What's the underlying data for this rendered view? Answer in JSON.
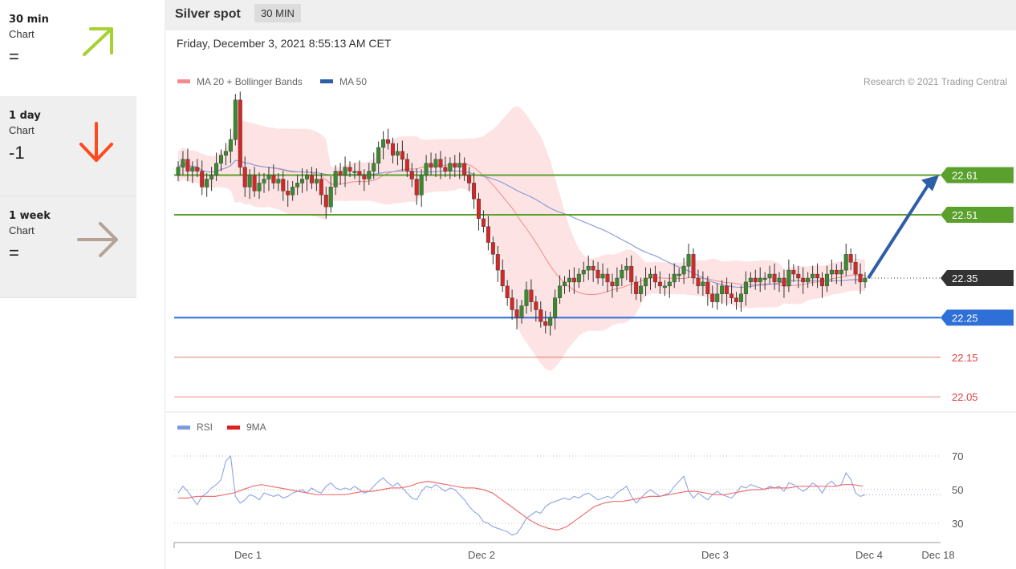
{
  "sidebar": [
    {
      "period": "30 min",
      "sub": "Chart",
      "signal": "=",
      "arrow": "up-right-arrow-icon",
      "color": "#9acd32"
    },
    {
      "period": "1 day",
      "sub": "Chart",
      "signal": "-1",
      "arrow": "down-arrow-icon",
      "color": "#ff4500"
    },
    {
      "period": "1 week",
      "sub": "Chart",
      "signal": "=",
      "arrow": "right-arrow-icon",
      "color": "#b5a397"
    }
  ],
  "header": {
    "title": "Silver spot",
    "timeframe": "30 MIN"
  },
  "datetime": "Friday, December 3, 2021 8:55:13 AM CET",
  "chart_data": {
    "type": "candlestick",
    "legend": [
      "MA 20 + Bollinger Bands",
      "MA 50"
    ],
    "copyright": "Research © 2021 Trading Central",
    "ylim": [
      22.02,
      22.85
    ],
    "x_ticks": [
      "Dec 1",
      "Dec 2",
      "Dec 3",
      "Dec 4",
      "Dec 18"
    ],
    "last_price": "22.35",
    "levels": [
      {
        "value": "22.61",
        "kind": "target",
        "color": "#5aa02c"
      },
      {
        "value": "22.51",
        "kind": "target",
        "color": "#5aa02c"
      },
      {
        "value": "22.25",
        "kind": "pivot",
        "color": "#2f6fd8"
      },
      {
        "value": "22.15",
        "kind": "support",
        "color": "#e04040"
      },
      {
        "value": "22.05",
        "kind": "support",
        "color": "#e04040"
      }
    ],
    "closes": [
      22.63,
      22.65,
      22.62,
      22.63,
      22.62,
      22.58,
      22.6,
      22.61,
      22.64,
      22.66,
      22.67,
      22.7,
      22.8,
      22.63,
      22.58,
      22.61,
      22.57,
      22.59,
      22.6,
      22.61,
      22.59,
      22.6,
      22.57,
      22.56,
      22.58,
      22.59,
      22.6,
      22.61,
      22.59,
      22.6,
      22.56,
      22.53,
      22.58,
      22.62,
      22.61,
      22.63,
      22.62,
      22.62,
      22.61,
      22.6,
      22.62,
      22.64,
      22.68,
      22.7,
      22.69,
      22.66,
      22.67,
      22.65,
      22.62,
      22.6,
      22.56,
      22.61,
      22.64,
      22.63,
      22.65,
      22.63,
      22.62,
      22.64,
      22.63,
      22.64,
      22.61,
      22.59,
      22.55,
      22.5,
      22.48,
      22.44,
      22.41,
      22.37,
      22.33,
      22.3,
      22.27,
      22.25,
      22.28,
      22.32,
      22.29,
      22.27,
      22.24,
      22.23,
      22.25,
      22.3,
      22.33,
      22.34,
      22.35,
      22.34,
      22.36,
      22.37,
      22.38,
      22.37,
      22.35,
      22.36,
      22.34,
      22.33,
      22.35,
      22.37,
      22.38,
      22.34,
      22.31,
      22.33,
      22.35,
      22.36,
      22.34,
      22.33,
      22.33,
      22.34,
      22.36,
      22.36,
      22.38,
      22.41,
      22.35,
      22.33,
      22.34,
      22.31,
      22.29,
      22.31,
      22.33,
      22.31,
      22.3,
      22.29,
      22.31,
      22.34,
      22.35,
      22.34,
      22.35,
      22.35,
      22.36,
      22.34,
      22.35,
      22.33,
      22.37,
      22.36,
      22.35,
      22.34,
      22.35,
      22.36,
      22.35,
      22.33,
      22.36,
      22.37,
      22.36,
      22.37,
      22.41,
      22.39,
      22.36,
      22.34,
      22.35
    ],
    "rsi": {
      "legend": [
        "RSI",
        "9MA"
      ],
      "levels": [
        "70",
        "50",
        "30"
      ],
      "values": [
        48,
        52,
        49,
        45,
        41,
        46,
        48,
        51,
        53,
        56,
        67,
        70,
        46,
        42,
        44,
        47,
        46,
        44,
        48,
        47,
        46,
        47,
        45,
        46,
        48,
        49,
        50,
        48,
        51,
        49,
        48,
        52,
        54,
        51,
        50,
        51,
        50,
        52,
        50,
        48,
        49,
        52,
        55,
        57,
        54,
        52,
        54,
        51,
        48,
        45,
        44,
        49,
        52,
        51,
        53,
        51,
        49,
        51,
        50,
        47,
        44,
        40,
        37,
        35,
        31,
        30,
        28,
        27,
        26,
        25,
        23,
        24,
        28,
        33,
        35,
        37,
        36,
        40,
        42,
        43,
        44,
        45,
        44,
        46,
        45,
        47,
        48,
        46,
        44,
        45,
        46,
        45,
        48,
        50,
        52,
        46,
        42,
        45,
        48,
        50,
        48,
        46,
        47,
        48,
        52,
        55,
        58,
        49,
        45,
        48,
        46,
        44,
        47,
        49,
        47,
        46,
        45,
        48,
        52,
        51,
        53,
        52,
        51,
        50,
        52,
        51,
        52,
        49,
        54,
        53,
        51,
        49,
        51,
        54,
        52,
        48,
        53,
        55,
        52,
        53,
        60,
        56,
        48,
        46,
        47
      ],
      "ma9": [
        45,
        45,
        46,
        46,
        46,
        47,
        48,
        50,
        52,
        53,
        52,
        51,
        50,
        49,
        48,
        47,
        47,
        47,
        47,
        48,
        49,
        49,
        50,
        51,
        51,
        52,
        54,
        55,
        54,
        53,
        52,
        51,
        51,
        50,
        48,
        44,
        40,
        36,
        32,
        29,
        27,
        26,
        28,
        32,
        36,
        40,
        42,
        43,
        43,
        44,
        45,
        46,
        46,
        47,
        48,
        49,
        49,
        48,
        47,
        47,
        48,
        49,
        50,
        50,
        51,
        51,
        51,
        52,
        52,
        52,
        52,
        52,
        53,
        53,
        52
      ]
    }
  }
}
